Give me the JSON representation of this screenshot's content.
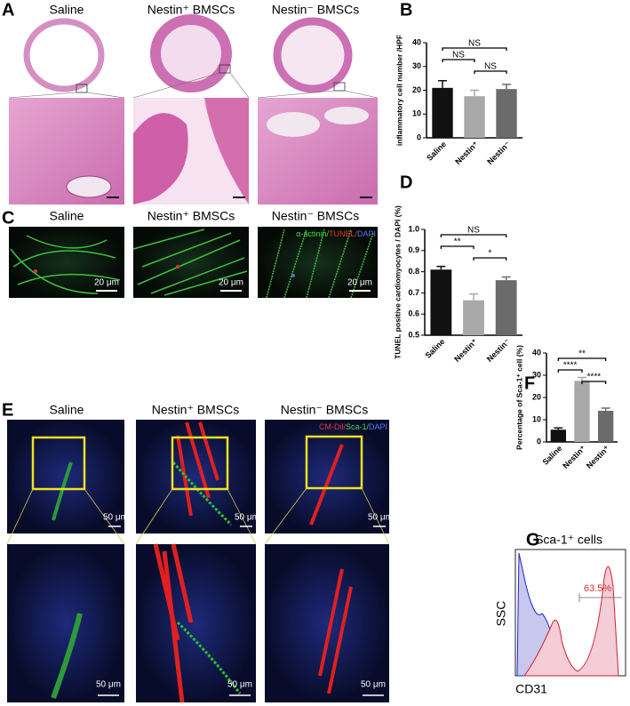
{
  "figure": {
    "labels": [
      "A",
      "B",
      "C",
      "D",
      "E",
      "F",
      "G"
    ],
    "a_columns": [
      "Saline",
      "Nestin⁺ BMSCs",
      "Nestin⁻ BMSCs"
    ],
    "c_columns": [
      "Saline",
      "Nestin⁺ BMSCs",
      "Nestin⁻ BMSCs"
    ],
    "c_stain": [
      "α-actinin/",
      "TUNEL/",
      "DAPI"
    ],
    "c_scale": "20 μm",
    "e_columns": [
      "Saline",
      "Nestin⁺ BMSCs",
      "Nestin⁻ BMSCs"
    ],
    "e_stain": [
      "CM-Dil/",
      "Sca-1/",
      "DAPI"
    ],
    "e_scale": "50 μm",
    "g_title": "Sca-1⁺ cells",
    "g_gate": "63.5%",
    "g_xlabel": "CD31",
    "g_ylabel": "SSC"
  },
  "chart_data": [
    {
      "type": "bar",
      "ylabel": "inflammatory cell number /HPF",
      "categories": [
        "Saline",
        "Nestin⁺",
        "Nestin⁻"
      ],
      "values": [
        21,
        17.5,
        20.5
      ],
      "errors": [
        3,
        2.5,
        2
      ],
      "colors": [
        "#111111",
        "#a8a8a8",
        "#6b6b6b"
      ],
      "ylim": [
        0,
        40
      ],
      "yticks": [
        0,
        10,
        20,
        30,
        40
      ],
      "annotations": [
        {
          "text": "NS",
          "from": 0,
          "to": 2
        },
        {
          "text": "NS",
          "from": 0,
          "to": 1
        },
        {
          "text": "NS",
          "from": 1,
          "to": 2
        }
      ]
    },
    {
      "type": "bar",
      "ylabel": "TUNEL positive cardiomyocytes / DAPI (%)",
      "categories": [
        "Saline",
        "Nestin⁺",
        "Nestin⁻"
      ],
      "values": [
        0.81,
        0.665,
        0.76
      ],
      "errors": [
        0.015,
        0.03,
        0.015
      ],
      "colors": [
        "#111111",
        "#a8a8a8",
        "#6b6b6b"
      ],
      "ylim": [
        0.5,
        1.0
      ],
      "yticks": [
        0.5,
        0.6,
        0.7,
        0.8,
        0.9,
        {
          "value": 1,
          "label": "1.0"
        }
      ],
      "annotations": [
        {
          "text": "NS",
          "from": 0,
          "to": 2
        },
        {
          "text": "**",
          "from": 0,
          "to": 1
        },
        {
          "text": "*",
          "from": 1,
          "to": 2
        }
      ]
    },
    {
      "type": "bar",
      "ylabel": "Percentage of Sca-1⁺ cell (%)",
      "categories": [
        "Saline",
        "Nestin⁺",
        "Nestin⁺"
      ],
      "values": [
        5.5,
        27.5,
        14
      ],
      "errors": [
        0.8,
        1.5,
        1.2
      ],
      "colors": [
        "#111111",
        "#a8a8a8",
        "#6b6b6b"
      ],
      "ylim": [
        0,
        40
      ],
      "yticks": [
        0,
        10,
        20,
        30,
        40
      ],
      "annotations": [
        {
          "text": "**",
          "from": 0,
          "to": 2
        },
        {
          "text": "****",
          "from": 0,
          "to": 1
        },
        {
          "text": "****",
          "from": 1,
          "to": 2
        }
      ]
    }
  ]
}
